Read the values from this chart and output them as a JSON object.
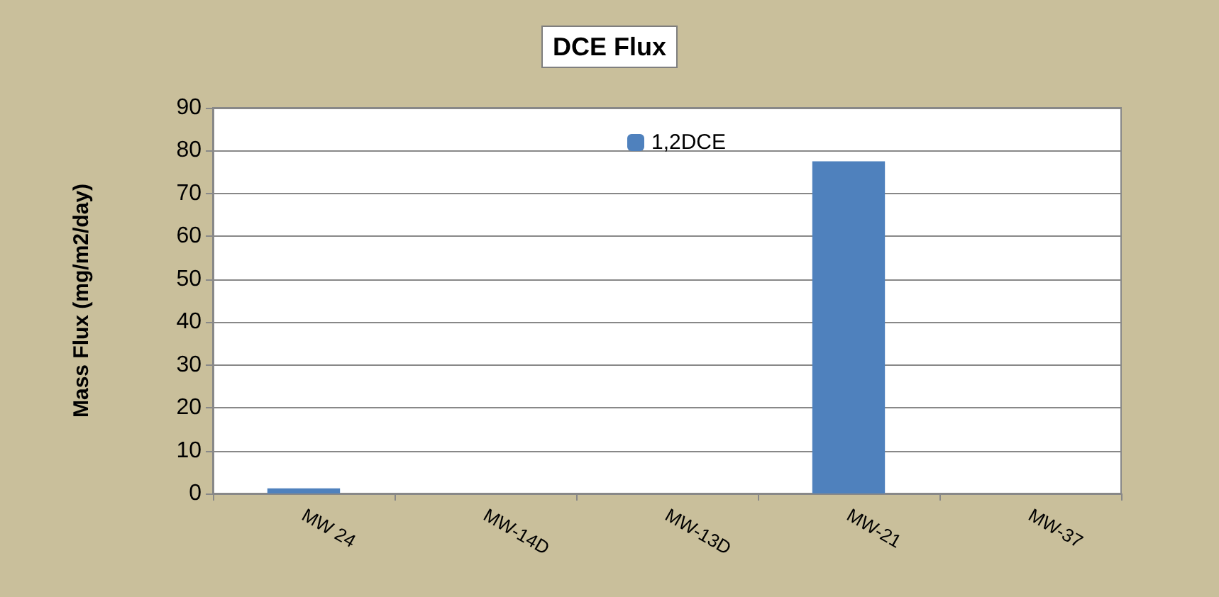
{
  "chart_data": {
    "type": "bar",
    "title": "DCE Flux",
    "ylabel": "Mass Flux (mg/m2/day)",
    "categories": [
      "MW 24",
      "MW-14D",
      "MW-13D",
      "MW-21",
      "MW-37"
    ],
    "series": [
      {
        "name": "1,2DCE",
        "color": "#4f81bd",
        "values": [
          1.2,
          0,
          0,
          77.5,
          0
        ]
      }
    ],
    "ylim": [
      0,
      90
    ],
    "yticks": [
      0,
      10,
      20,
      30,
      40,
      50,
      60,
      70,
      80,
      90
    ],
    "grid": "y",
    "legend": "top"
  }
}
